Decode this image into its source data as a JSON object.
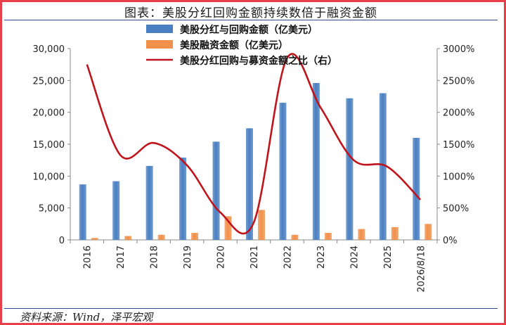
{
  "chart_data": {
    "type": "bar",
    "title": "图表：美股分红回购金额持续数倍于融资金额",
    "categories": [
      "2016",
      "2017",
      "2018",
      "2019",
      "2020",
      "2021",
      "2022",
      "2023",
      "2024",
      "2025",
      "2026/8/18"
    ],
    "series": [
      {
        "name": "美股分红与回购金额（亿美元）",
        "type": "bar",
        "axis": "left",
        "color": "#4a7fc1",
        "values": [
          8700,
          9200,
          11600,
          12900,
          15400,
          17500,
          21500,
          24600,
          22200,
          23000,
          16000
        ]
      },
      {
        "name": "美股融资金额（亿美元）",
        "type": "bar",
        "axis": "left",
        "color": "#f0904a",
        "values": [
          300,
          600,
          800,
          1100,
          3700,
          4700,
          800,
          1100,
          1700,
          2000,
          2500
        ]
      },
      {
        "name": "美股分红回购与募资金额之比（右）",
        "type": "line",
        "axis": "right",
        "color": "#c0141c",
        "values": [
          2750,
          1330,
          1520,
          1170,
          430,
          270,
          2850,
          2080,
          1250,
          1150,
          630
        ]
      }
    ],
    "y_left": {
      "min": 0,
      "max": 30000,
      "ticks": [
        "0",
        "5,000",
        "10,000",
        "15,000",
        "20,000",
        "25,000",
        "30,000"
      ]
    },
    "y_right": {
      "min": 0,
      "max": 3000,
      "ticks": [
        "0%",
        "500%",
        "1000%",
        "1500%",
        "2000%",
        "2500%",
        "3000%"
      ]
    },
    "legend_position": "top-center",
    "grid": false
  },
  "footer": {
    "source": "资料来源：Wind，泽平宏观"
  },
  "colors": {
    "frame": "#e8404a",
    "rule": "#2b4a8f"
  }
}
